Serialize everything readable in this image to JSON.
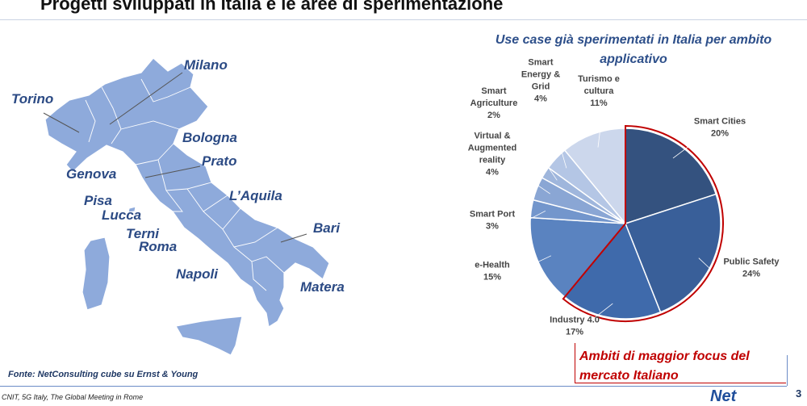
{
  "header": {
    "title": "Progetti sviluppati in Italia e le aree di sperimentazione"
  },
  "map": {
    "cities": [
      {
        "id": "milano",
        "name": "Milano"
      },
      {
        "id": "torino",
        "name": "Torino"
      },
      {
        "id": "bologna",
        "name": "Bologna"
      },
      {
        "id": "prato",
        "name": "Prato"
      },
      {
        "id": "genova",
        "name": "Genova"
      },
      {
        "id": "laquila",
        "name": "L’Aquila"
      },
      {
        "id": "pisa",
        "name": "Pisa"
      },
      {
        "id": "lucca",
        "name": "Lucca"
      },
      {
        "id": "terni",
        "name": "Terni"
      },
      {
        "id": "roma",
        "name": "Roma"
      },
      {
        "id": "bari",
        "name": "Bari"
      },
      {
        "id": "napoli",
        "name": "Napoli"
      },
      {
        "id": "matera",
        "name": "Matera"
      }
    ],
    "fill_color": "#8eaadb",
    "text_color": "#2b4a84"
  },
  "chart_data": {
    "type": "pie",
    "title": "Use case già sperimentati in Italia per ambito applicativo",
    "categories": [
      "Smart Cities",
      "Public Safety",
      "Industry 4.0",
      "e-Health",
      "Smart Port",
      "Virtual & Augmented reality",
      "Smart Agriculture",
      "Smart Energy & Grid",
      "Turismo e cultura"
    ],
    "values": [
      20,
      24,
      17,
      15,
      3,
      4,
      2,
      4,
      11
    ],
    "value_labels": [
      "20%",
      "24%",
      "17%",
      "15%",
      "3%",
      "4%",
      "2%",
      "4%",
      "11%"
    ],
    "label_lines": [
      [
        "Smart Cities"
      ],
      [
        "Public Safety"
      ],
      [
        "Industry 4.0"
      ],
      [
        "e-Health"
      ],
      [
        "Smart Port"
      ],
      [
        "Virtual &",
        "Augmented",
        "reality"
      ],
      [
        "Smart",
        "Agriculture"
      ],
      [
        "Smart",
        "Energy &",
        "Grid"
      ],
      [
        "Turismo e",
        "cultura"
      ]
    ],
    "colors": [
      "#34527f",
      "#395f99",
      "#3f6aab",
      "#5a83c0",
      "#7396cc",
      "#8aa6d4",
      "#9fb6dc",
      "#b4c6e5",
      "#ccd7ec"
    ],
    "highlight_color": "#c00000",
    "highlighted_categories": [
      "Smart Cities",
      "Public Safety",
      "Industry 4.0"
    ]
  },
  "focus_note": {
    "text": "Ambiti di maggior focus del mercato Italiano"
  },
  "source": {
    "text": "Fonte: NetConsulting cube su Ernst & Young"
  },
  "footer": {
    "text": "CNIT, 5G Italy, The Global Meeting in Rome",
    "logo": "Net",
    "page": "3"
  }
}
